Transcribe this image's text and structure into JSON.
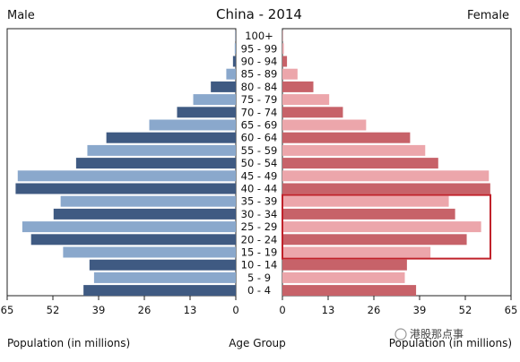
{
  "chart_data": {
    "type": "bar",
    "title": "China - 2014",
    "left_label": "Male",
    "right_label": "Female",
    "center_label": "Age Group",
    "xlabel_left": "Population (in millions)",
    "xlabel_right": "Population (in millions)",
    "watermark": "港股那点事",
    "x_ticks_left": [
      "65",
      "52",
      "39",
      "26",
      "13",
      "0"
    ],
    "x_ticks_right": [
      "0",
      "13",
      "26",
      "39",
      "52",
      "65"
    ],
    "xlim": [
      0,
      65
    ],
    "categories": [
      "100+",
      "95 - 99",
      "90 - 94",
      "85 - 89",
      "80 - 84",
      "75 - 79",
      "70 - 74",
      "65 - 69",
      "60 - 64",
      "55 - 59",
      "50 - 54",
      "45 - 49",
      "40 - 44",
      "35 - 39",
      "30 - 34",
      "25 - 29",
      "20 - 24",
      "15 - 19",
      "10 - 14",
      "5 - 9",
      "0 - 4"
    ],
    "series": [
      {
        "name": "Male",
        "values": [
          0.1,
          0.3,
          0.8,
          2.7,
          7.1,
          12.1,
          16.7,
          24.6,
          36.8,
          42.2,
          45.4,
          62.0,
          62.6,
          49.8,
          51.8,
          60.7,
          58.2,
          49.1,
          41.6,
          40.3,
          43.3
        ]
      },
      {
        "name": "Female",
        "values": [
          0.1,
          0.4,
          1.3,
          4.3,
          8.8,
          13.3,
          17.2,
          23.8,
          36.3,
          40.6,
          44.3,
          58.7,
          59.1,
          47.3,
          49.1,
          56.5,
          52.4,
          42.1,
          35.4,
          34.8,
          38.0
        ]
      }
    ],
    "highlight": {
      "from_category": "35 - 39",
      "to_category": "15 - 19",
      "color": "#c0212a"
    },
    "colors": {
      "male_light": "#8aa8cc",
      "male_dark": "#3f5a82",
      "female_light": "#eca6ab",
      "female_dark": "#c76269"
    },
    "grid": false,
    "legend": "none"
  }
}
